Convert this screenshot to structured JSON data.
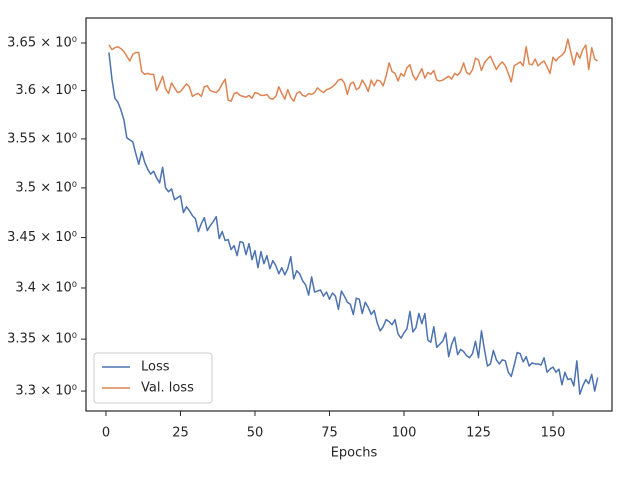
{
  "chart_data": {
    "type": "line",
    "x_label": "Epochs",
    "yscale": "log",
    "legend": "lower left",
    "xlim": [
      -6.7,
      169.8
    ],
    "xticks": [
      0,
      25,
      50,
      75,
      100,
      125,
      150
    ],
    "ylim": [
      3.281,
      3.6765
    ],
    "yticks": [
      {
        "value": 3.3,
        "label": "3.3 × 10⁰"
      },
      {
        "value": 3.35,
        "label": "3.35 × 10⁰"
      },
      {
        "value": 3.4,
        "label": "3.4 × 10⁰"
      },
      {
        "value": 3.45,
        "label": "3.45 × 10⁰"
      },
      {
        "value": 3.5,
        "label": "3.5 × 10⁰"
      },
      {
        "value": 3.55,
        "label": "3.55 × 10⁰"
      },
      {
        "value": 3.6,
        "label": "3.6 × 10⁰"
      },
      {
        "value": 3.65,
        "label": "3.65 × 10⁰"
      }
    ],
    "x": [
      1,
      2,
      3,
      4,
      5,
      6,
      7,
      8,
      9,
      10,
      11,
      12,
      13,
      14,
      15,
      16,
      17,
      18,
      19,
      20,
      21,
      22,
      23,
      24,
      25,
      26,
      27,
      28,
      29,
      30,
      31,
      32,
      33,
      34,
      35,
      36,
      37,
      38,
      39,
      40,
      41,
      42,
      43,
      44,
      45,
      46,
      47,
      48,
      49,
      50,
      51,
      52,
      53,
      54,
      55,
      56,
      57,
      58,
      59,
      60,
      61,
      62,
      63,
      64,
      65,
      66,
      67,
      68,
      69,
      70,
      71,
      72,
      73,
      74,
      75,
      76,
      77,
      78,
      79,
      80,
      81,
      82,
      83,
      84,
      85,
      86,
      87,
      88,
      89,
      90,
      91,
      92,
      93,
      94,
      95,
      96,
      97,
      98,
      99,
      100,
      101,
      102,
      103,
      104,
      105,
      106,
      107,
      108,
      109,
      110,
      111,
      112,
      113,
      114,
      115,
      116,
      117,
      118,
      119,
      120,
      121,
      122,
      123,
      124,
      125,
      126,
      127,
      128,
      129,
      130,
      131,
      132,
      133,
      134,
      135,
      136,
      137,
      138,
      139,
      140,
      141,
      142,
      143,
      144,
      145,
      146,
      147,
      148,
      149,
      150,
      151,
      152,
      153,
      154,
      155,
      156,
      157,
      158,
      159,
      160,
      161,
      162,
      163,
      164,
      165
    ],
    "series": [
      {
        "name": "Loss",
        "color": "#4c72b0",
        "values": [
          3.64,
          3.612,
          3.592,
          3.588,
          3.58,
          3.57,
          3.551,
          3.549,
          3.547,
          3.535,
          3.524,
          3.537,
          3.526,
          3.519,
          3.514,
          3.517,
          3.51,
          3.505,
          3.521,
          3.5,
          3.496,
          3.499,
          3.488,
          3.49,
          3.492,
          3.475,
          3.481,
          3.477,
          3.472,
          3.469,
          3.456,
          3.464,
          3.47,
          3.457,
          3.462,
          3.466,
          3.471,
          3.449,
          3.456,
          3.447,
          3.448,
          3.438,
          3.442,
          3.432,
          3.446,
          3.445,
          3.433,
          3.444,
          3.428,
          3.437,
          3.42,
          3.436,
          3.424,
          3.432,
          3.419,
          3.427,
          3.422,
          3.414,
          3.42,
          3.413,
          3.419,
          3.431,
          3.409,
          3.417,
          3.414,
          3.407,
          3.403,
          3.393,
          3.411,
          3.396,
          3.397,
          3.398,
          3.392,
          3.396,
          3.389,
          3.395,
          3.392,
          3.379,
          3.397,
          3.392,
          3.386,
          3.384,
          3.374,
          3.39,
          3.389,
          3.375,
          3.386,
          3.381,
          3.374,
          3.378,
          3.366,
          3.358,
          3.362,
          3.369,
          3.367,
          3.364,
          3.369,
          3.355,
          3.351,
          3.356,
          3.36,
          3.377,
          3.357,
          3.361,
          3.375,
          3.365,
          3.375,
          3.349,
          3.347,
          3.362,
          3.342,
          3.345,
          3.348,
          3.356,
          3.333,
          3.345,
          3.352,
          3.335,
          3.34,
          3.338,
          3.334,
          3.332,
          3.336,
          3.348,
          3.332,
          3.358,
          3.34,
          3.324,
          3.326,
          3.339,
          3.33,
          3.326,
          3.33,
          3.329,
          3.318,
          3.314,
          3.325,
          3.337,
          3.336,
          3.328,
          3.333,
          3.324,
          3.327,
          3.326,
          3.326,
          3.325,
          3.332,
          3.318,
          3.321,
          3.323,
          3.318,
          3.321,
          3.306,
          3.318,
          3.311,
          3.312,
          3.305,
          3.329,
          3.297,
          3.305,
          3.311,
          3.307,
          3.316,
          3.3,
          3.313
        ]
      },
      {
        "name": "Val. loss",
        "color": "#dd8452",
        "values": [
          3.648,
          3.643,
          3.645,
          3.646,
          3.644,
          3.641,
          3.636,
          3.631,
          3.638,
          3.64,
          3.64,
          3.62,
          3.617,
          3.618,
          3.617,
          3.617,
          3.6,
          3.607,
          3.615,
          3.602,
          3.597,
          3.608,
          3.603,
          3.598,
          3.599,
          3.603,
          3.607,
          3.604,
          3.594,
          3.596,
          3.597,
          3.594,
          3.604,
          3.605,
          3.6,
          3.599,
          3.598,
          3.601,
          3.607,
          3.612,
          3.59,
          3.589,
          3.597,
          3.598,
          3.595,
          3.594,
          3.593,
          3.595,
          3.592,
          3.598,
          3.597,
          3.595,
          3.595,
          3.596,
          3.592,
          3.591,
          3.594,
          3.604,
          3.597,
          3.591,
          3.601,
          3.593,
          3.589,
          3.597,
          3.599,
          3.595,
          3.594,
          3.597,
          3.596,
          3.598,
          3.603,
          3.6,
          3.598,
          3.601,
          3.602,
          3.604,
          3.607,
          3.611,
          3.612,
          3.608,
          3.596,
          3.607,
          3.609,
          3.601,
          3.603,
          3.611,
          3.606,
          3.599,
          3.611,
          3.605,
          3.611,
          3.61,
          3.605,
          3.615,
          3.629,
          3.62,
          3.618,
          3.61,
          3.618,
          3.615,
          3.624,
          3.627,
          3.616,
          3.611,
          3.617,
          3.623,
          3.613,
          3.619,
          3.617,
          3.621,
          3.611,
          3.61,
          3.611,
          3.613,
          3.615,
          3.612,
          3.618,
          3.616,
          3.62,
          3.629,
          3.619,
          3.617,
          3.622,
          3.634,
          3.632,
          3.621,
          3.629,
          3.633,
          3.636,
          3.629,
          3.622,
          3.627,
          3.63,
          3.626,
          3.618,
          3.609,
          3.626,
          3.628,
          3.63,
          3.626,
          3.646,
          3.628,
          3.627,
          3.633,
          3.626,
          3.629,
          3.631,
          3.625,
          3.618,
          3.635,
          3.631,
          3.635,
          3.637,
          3.641,
          3.654,
          3.64,
          3.627,
          3.64,
          3.634,
          3.643,
          3.648,
          3.622,
          3.645,
          3.633,
          3.631
        ]
      }
    ]
  }
}
